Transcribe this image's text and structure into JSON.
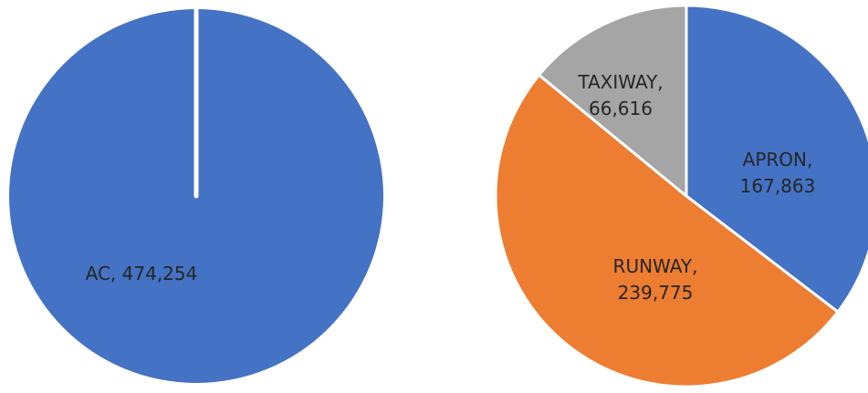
{
  "chart_data": [
    {
      "type": "pie",
      "slices": [
        {
          "label": "AC",
          "value": 474254,
          "display": "474,254",
          "color": "#4472C4"
        }
      ],
      "start_angle_deg": 0,
      "direction": "clockwise",
      "data_labels": [
        "AC, 474,254"
      ],
      "legend": "none"
    },
    {
      "type": "pie",
      "slices": [
        {
          "label": "APRON",
          "value": 167863,
          "display": "167,863",
          "color": "#4472C4"
        },
        {
          "label": "RUNWAY",
          "value": 239775,
          "display": "239,775",
          "color": "#ED7D31"
        },
        {
          "label": "TAXIWAY",
          "value": 66616,
          "display": "66,616",
          "color": "#A5A5A5"
        }
      ],
      "start_angle_deg": 0,
      "direction": "clockwise",
      "data_labels": [
        [
          "APRON,",
          "167,863"
        ],
        [
          "RUNWAY,",
          "239,775"
        ],
        [
          "TAXIWAY,",
          "66,616"
        ]
      ],
      "legend": "none"
    }
  ]
}
